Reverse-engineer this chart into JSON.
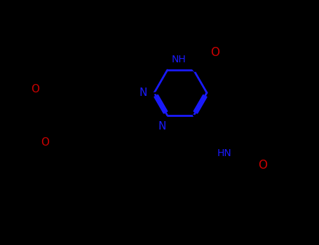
{
  "bg_color": "#000000",
  "bond_color": "#000000",
  "ring_color": "#1a1aff",
  "oxygen_color": "#cc0000",
  "nitrogen_color": "#1a1aff",
  "lw": 2.0,
  "dbo": 0.08,
  "figsize": [
    4.55,
    3.5
  ],
  "dpi": 100,
  "xlim": [
    0,
    9.0
  ],
  "ylim": [
    0,
    7.0
  ]
}
